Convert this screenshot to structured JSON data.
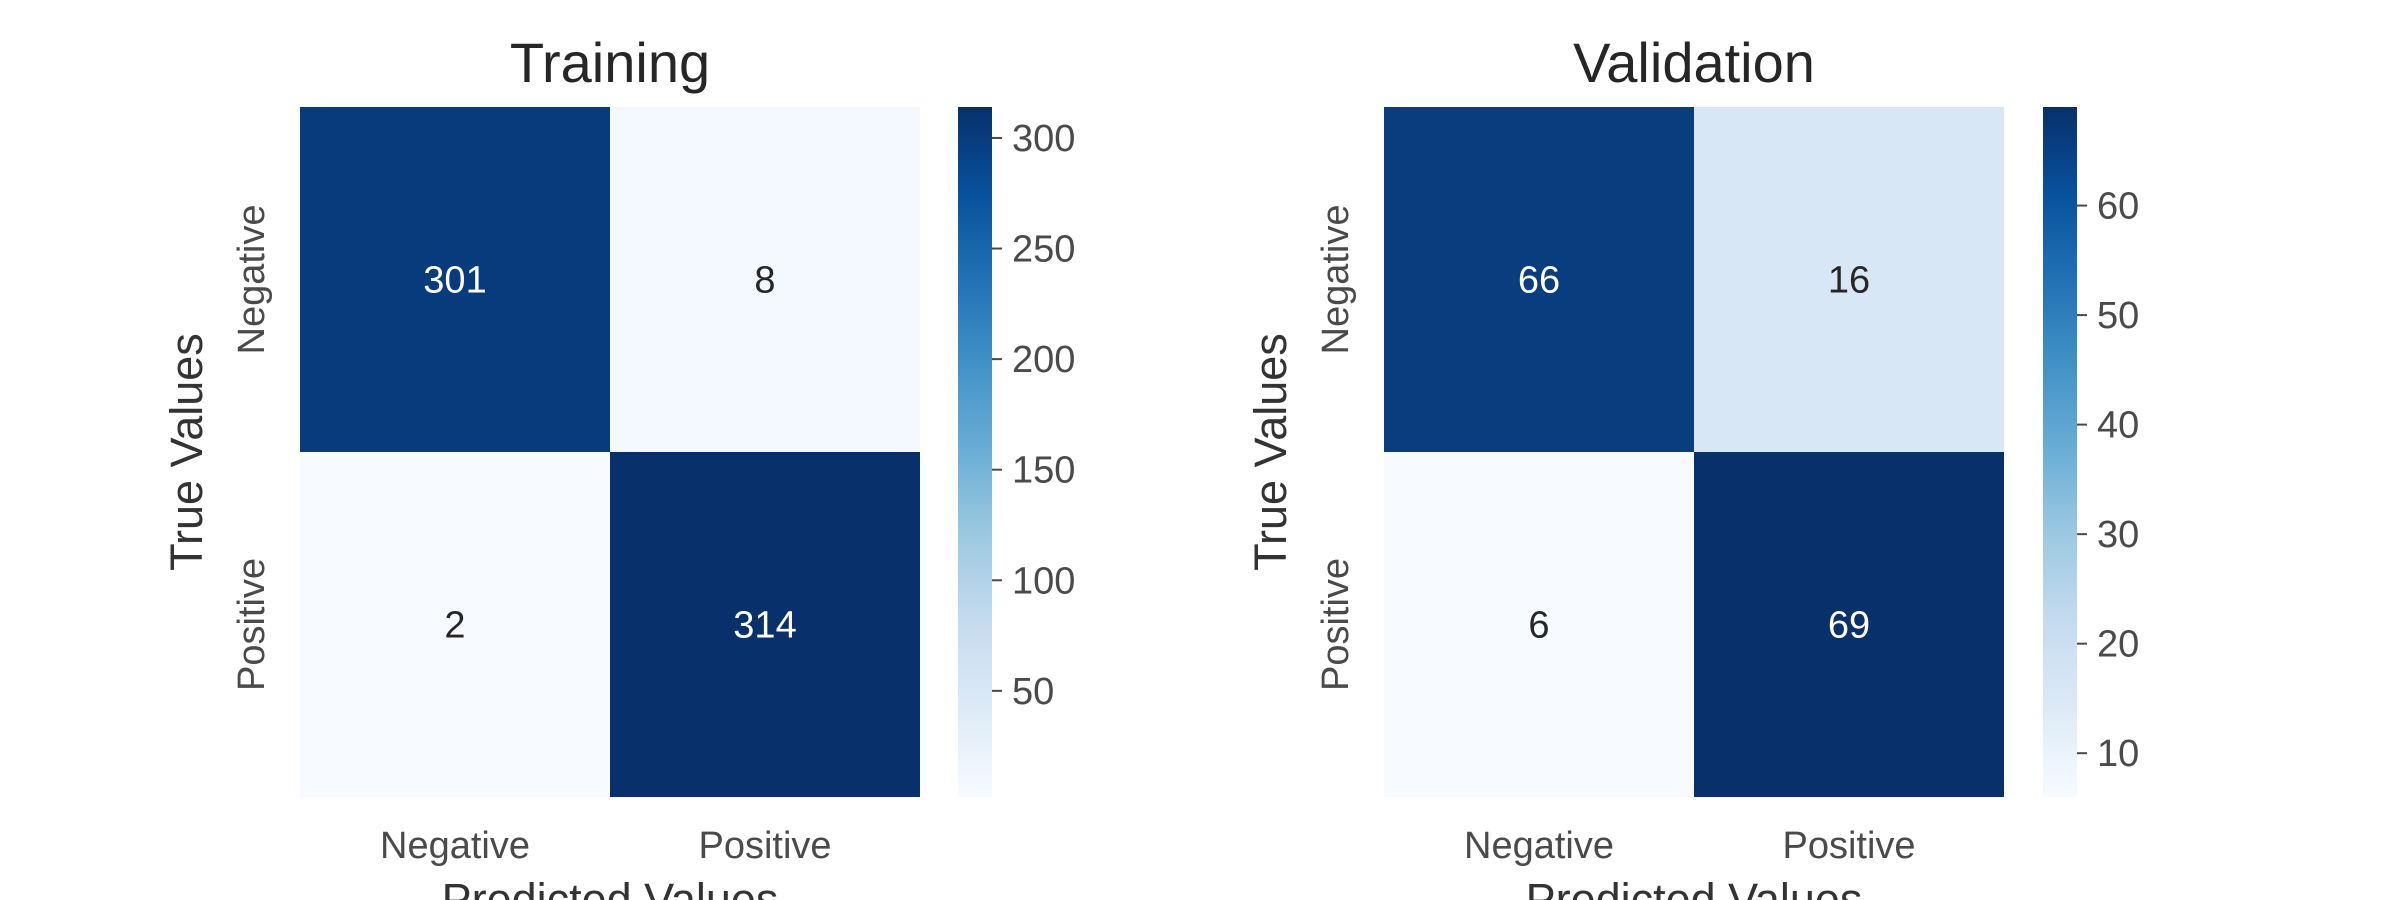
{
  "chart_data": [
    {
      "type": "heatmap",
      "title": "Training",
      "xlabel": "Predicted Values",
      "ylabel": "True Values",
      "x_categories": [
        "Negative",
        "Positive"
      ],
      "y_categories": [
        "Negative",
        "Positive"
      ],
      "values": [
        [
          301,
          8
        ],
        [
          2,
          314
        ]
      ],
      "colormap": "Blues",
      "colorbar": {
        "min": 2,
        "max": 314,
        "ticks": [
          50,
          100,
          150,
          200,
          250,
          300
        ]
      }
    },
    {
      "type": "heatmap",
      "title": "Validation",
      "xlabel": "Predicted Values",
      "ylabel": "True Values",
      "x_categories": [
        "Negative",
        "Positive"
      ],
      "y_categories": [
        "Negative",
        "Positive"
      ],
      "values": [
        [
          66,
          16
        ],
        [
          6,
          69
        ]
      ],
      "colormap": "Blues",
      "colorbar": {
        "min": 6,
        "max": 69,
        "ticks": [
          10,
          20,
          30,
          40,
          50,
          60
        ]
      }
    }
  ]
}
